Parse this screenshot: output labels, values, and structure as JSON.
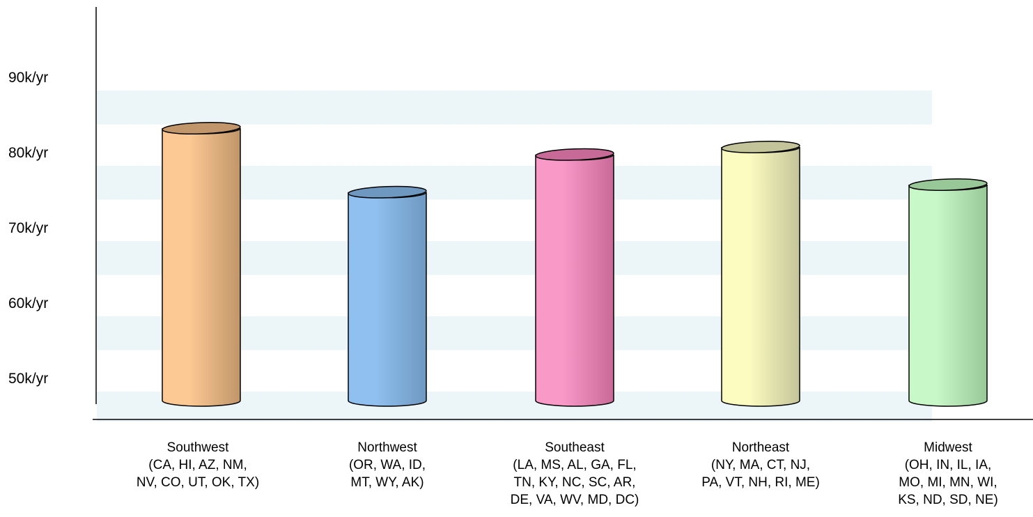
{
  "chart_data": {
    "type": "bar",
    "style": "3d-cylinder",
    "categories": [
      {
        "name": "Southwest",
        "detail": [
          "(CA, HI, AZ, NM,",
          "NV, CO, UT, OK, TX)"
        ]
      },
      {
        "name": "Northwest",
        "detail": [
          "(OR, WA, ID,",
          "MT, WY, AK)"
        ]
      },
      {
        "name": "Southeast",
        "detail": [
          "(LA, MS, AL, GA, FL,",
          "TN, KY, NC, SC, AR,",
          "DE, VA, WV, MD, DC)"
        ]
      },
      {
        "name": "Northeast",
        "detail": [
          "(NY, MA, CT, NJ,",
          "PA, VT, NH, RI, ME)"
        ]
      },
      {
        "name": "Midwest",
        "detail": [
          "(OH, IN, IL, IA,",
          "MO, MI, MN, WI,",
          "KS, ND, SD, NE)"
        ]
      }
    ],
    "values": [
      85,
      76.5,
      81.5,
      82.5,
      77.5
    ],
    "y_ticks": [
      {
        "value": 50,
        "label": "50k/yr"
      },
      {
        "value": 60,
        "label": "60k/yr"
      },
      {
        "value": 70,
        "label": "70k/yr"
      },
      {
        "value": 80,
        "label": "80k/yr"
      },
      {
        "value": 90,
        "label": "90k/yr"
      }
    ],
    "ylim": [
      46,
      90
    ],
    "title": "",
    "xlabel": "",
    "ylabel": "",
    "grid": "alternating horizontal bands",
    "band_color": "#ecf5f7",
    "bar_colors": [
      "#fcc893",
      "#90c0f0",
      "#f899c8",
      "#fcfcc0",
      "#c8f8c8"
    ],
    "bar_dark_colors": [
      "#c0966a",
      "#6e98c0",
      "#c86a98",
      "#c4c49a",
      "#98c898"
    ]
  }
}
